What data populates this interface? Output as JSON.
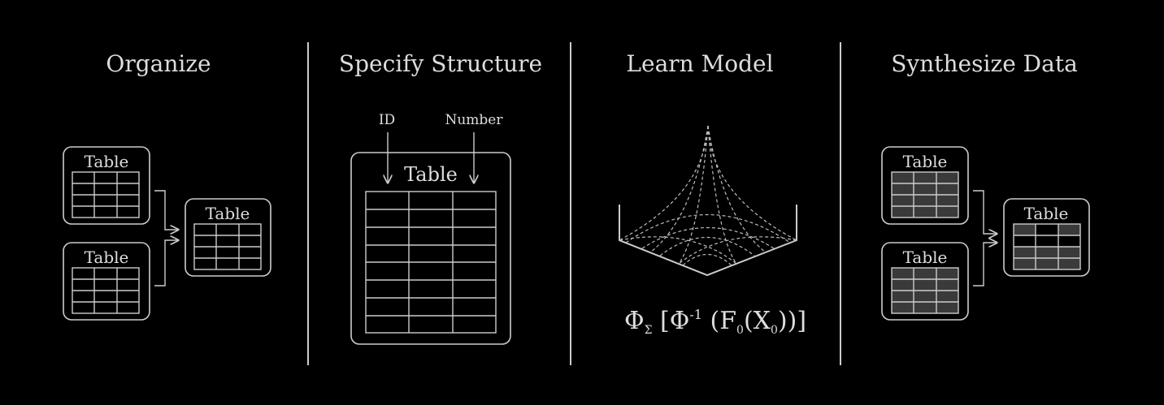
{
  "panels": [
    {
      "title": "Organize"
    },
    {
      "title": "Specify Structure"
    },
    {
      "title": "Learn Model"
    },
    {
      "title": "Synthesize Data"
    }
  ],
  "organize": {
    "table1": "Table",
    "table2": "Table",
    "merged": "Table"
  },
  "structure": {
    "table": "Table",
    "column_labels": [
      "ID",
      "Number"
    ]
  },
  "model": {
    "formula": {
      "phi": "Φ",
      "sigma": "Σ",
      "open": " [Φ",
      "inv": "-1",
      "mid": " (F",
      "sub0a": "0",
      "x": "(X",
      "sub0b": "0",
      "close": "))]"
    }
  },
  "synthesize": {
    "table1": "Table",
    "table2": "Table",
    "merged": "Table"
  },
  "colors": {
    "stroke": "#cccccc",
    "background": "#000000",
    "fill_synth": "#3a3a3a"
  }
}
